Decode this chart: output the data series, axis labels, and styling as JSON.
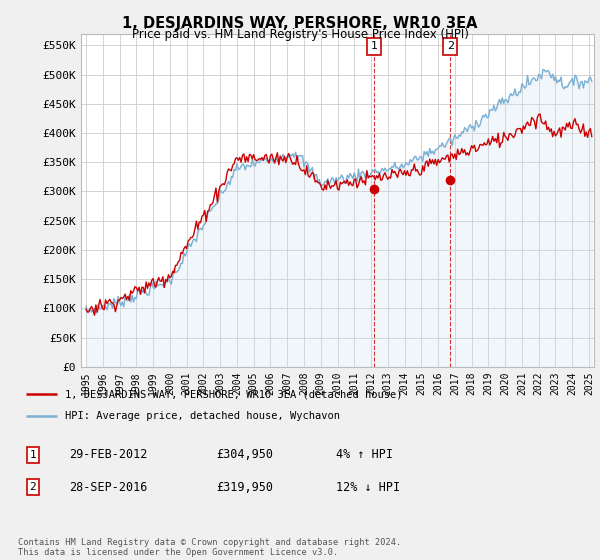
{
  "title": "1, DESJARDINS WAY, PERSHORE, WR10 3EA",
  "subtitle": "Price paid vs. HM Land Registry's House Price Index (HPI)",
  "ylabel_ticks": [
    "£0",
    "£50K",
    "£100K",
    "£150K",
    "£200K",
    "£250K",
    "£300K",
    "£350K",
    "£400K",
    "£450K",
    "£500K",
    "£550K"
  ],
  "ytick_values": [
    0,
    50000,
    100000,
    150000,
    200000,
    250000,
    300000,
    350000,
    400000,
    450000,
    500000,
    550000
  ],
  "ylim": [
    0,
    570000
  ],
  "xlim_start": 1994.7,
  "xlim_end": 2025.3,
  "hpi_color": "#7bafd4",
  "hpi_fill_color": "#c8dff0",
  "price_color": "#cc0000",
  "sale1_x": 2012.17,
  "sale1_y": 304950,
  "sale2_x": 2016.73,
  "sale2_y": 319950,
  "sale1_label": "29-FEB-2012",
  "sale1_price": "£304,950",
  "sale1_hpi": "4% ↑ HPI",
  "sale2_label": "28-SEP-2016",
  "sale2_price": "£319,950",
  "sale2_hpi": "12% ↓ HPI",
  "legend_line1": "1, DESJARDINS WAY, PERSHORE, WR10 3EA (detached house)",
  "legend_line2": "HPI: Average price, detached house, Wychavon",
  "footer": "Contains HM Land Registry data © Crown copyright and database right 2024.\nThis data is licensed under the Open Government Licence v3.0.",
  "background_color": "#f0f0f0",
  "plot_bg_color": "#ffffff",
  "grid_color": "#cccccc"
}
